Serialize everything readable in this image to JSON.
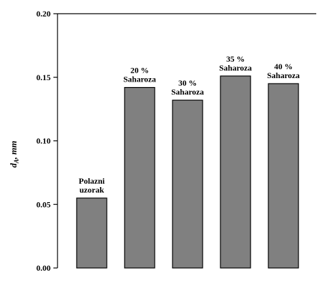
{
  "chart_data": {
    "type": "bar",
    "categories": [
      "Polazni uzorak",
      "20 % Saharoza",
      "30 % Saharoza",
      "35 % Saharoza",
      "40 % Saharoza"
    ],
    "label_lines": [
      [
        "Polazni",
        "uzorak"
      ],
      [
        "20 %",
        "Saharoza"
      ],
      [
        "30 %",
        "Saharoza"
      ],
      [
        "35 %",
        "Saharoza"
      ],
      [
        "40 %",
        "Saharoza"
      ]
    ],
    "values": [
      0.055,
      0.142,
      0.132,
      0.151,
      0.145
    ],
    "ylabel": {
      "main": "d",
      "sub": "A",
      "rest": ", mm"
    },
    "ylim": [
      0.0,
      0.2
    ],
    "yticks": [
      "0.00",
      "0.05",
      "0.10",
      "0.15",
      "0.20"
    ],
    "bar_color": "#808080",
    "edge_color": "#000000"
  }
}
